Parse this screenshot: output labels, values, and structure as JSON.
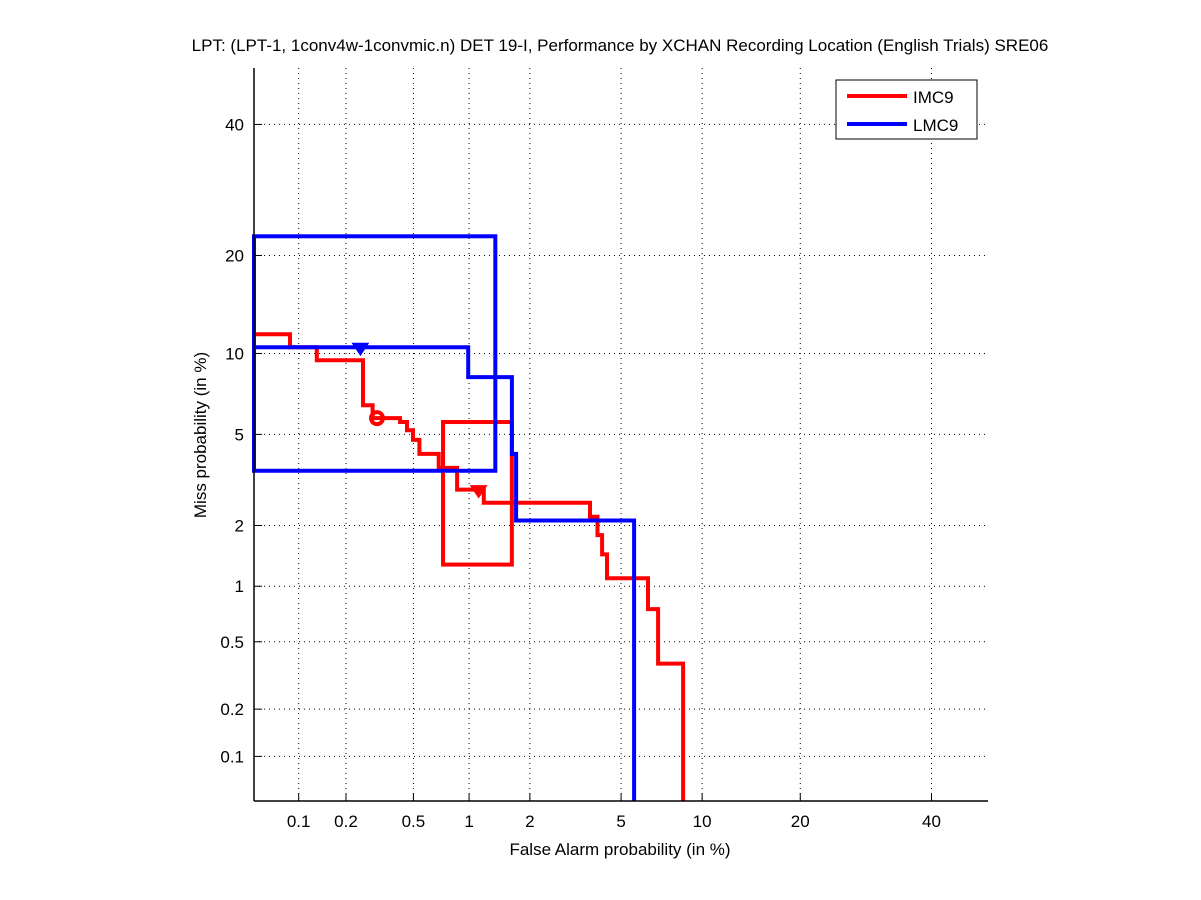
{
  "chart_data": {
    "type": "line",
    "scale": "probit",
    "title": "LPT: (LPT-1, 1conv4w-1convmic.n) DET 19-I,  Performance by XCHAN Recording Location (English Trials) SRE06",
    "xlabel": "False Alarm probability (in %)",
    "ylabel": "Miss probability (in %)",
    "xlim": [
      0.05,
      50
    ],
    "ylim": [
      0.05,
      50
    ],
    "x_ticks": [
      0.1,
      0.2,
      0.5,
      1,
      2,
      5,
      10,
      20,
      40
    ],
    "x_tick_labels": [
      "0.1",
      "0.2",
      "0.5",
      "1",
      "2",
      "5",
      "10",
      "20",
      "40"
    ],
    "y_ticks": [
      0.1,
      0.2,
      0.5,
      1,
      2,
      5,
      10,
      20,
      40
    ],
    "y_tick_labels": [
      "0.1",
      "0.2",
      "0.5",
      "1",
      "2",
      "5",
      "10",
      "20",
      "40"
    ],
    "grid": true,
    "legend_position": "top-right",
    "series": [
      {
        "name": "IMC9",
        "color": "#ff0000",
        "points": [
          [
            0.05,
            11.6
          ],
          [
            0.0877,
            11.6
          ],
          [
            0.0877,
            10.5
          ],
          [
            0.131,
            10.5
          ],
          [
            0.131,
            9.47
          ],
          [
            0.254,
            9.47
          ],
          [
            0.254,
            6.5
          ],
          [
            0.29,
            6.5
          ],
          [
            0.29,
            5.8
          ],
          [
            0.42,
            5.8
          ],
          [
            0.42,
            5.6
          ],
          [
            0.46,
            5.6
          ],
          [
            0.46,
            5.2
          ],
          [
            0.497,
            5.2
          ],
          [
            0.497,
            4.75
          ],
          [
            0.54,
            4.75
          ],
          [
            0.54,
            4.16
          ],
          [
            0.69,
            4.16
          ],
          [
            0.69,
            3.63
          ],
          [
            0.866,
            3.63
          ],
          [
            0.866,
            2.92
          ],
          [
            1.19,
            2.92
          ],
          [
            1.19,
            2.55
          ],
          [
            3.72,
            2.55
          ],
          [
            3.72,
            2.2
          ],
          [
            4.0,
            2.2
          ],
          [
            4.0,
            1.8
          ],
          [
            4.18,
            1.8
          ],
          [
            4.18,
            1.45
          ],
          [
            4.38,
            1.45
          ],
          [
            4.38,
            1.1
          ],
          [
            6.37,
            1.1
          ],
          [
            6.37,
            0.757
          ],
          [
            6.96,
            0.757
          ],
          [
            6.96,
            0.375
          ],
          [
            8.58,
            0.375
          ],
          [
            8.58,
            0.05
          ]
        ],
        "box": {
          "x": [
            0.728,
            1.64
          ],
          "y": [
            1.29,
            5.6
          ]
        },
        "markers": [
          {
            "shape": "circle",
            "x": 0.308,
            "y": 5.8
          },
          {
            "shape": "triangle-down",
            "x": 1.12,
            "y": 2.92
          }
        ]
      },
      {
        "name": "LMC9",
        "color": "#0000ff",
        "points": [
          [
            0.05,
            10.5
          ],
          [
            0.99,
            10.5
          ],
          [
            0.99,
            8.26
          ],
          [
            1.64,
            8.26
          ],
          [
            1.64,
            4.16
          ],
          [
            1.72,
            4.16
          ],
          [
            1.72,
            2.11
          ],
          [
            5.63,
            2.11
          ],
          [
            5.63,
            0.05
          ]
        ],
        "box": {
          "x": [
            0.05,
            1.36
          ],
          "y": [
            3.53,
            22.5
          ]
        },
        "markers": [
          {
            "shape": "triangle-down",
            "x": 0.245,
            "y": 10.5
          }
        ]
      }
    ]
  }
}
